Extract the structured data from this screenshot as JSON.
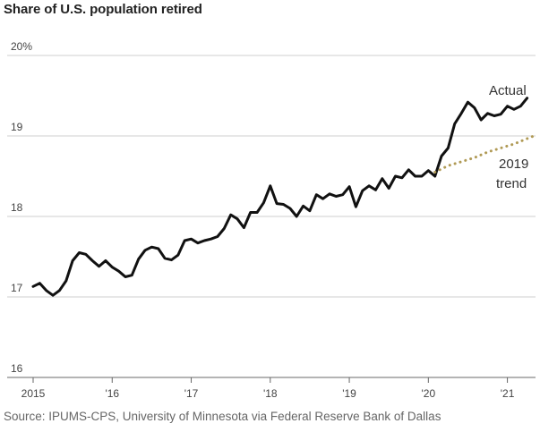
{
  "chart_data": {
    "type": "line",
    "title": "Share of U.S. population retired",
    "source": "Source: IPUMS-CPS, University of Minnesota via Federal Reserve Bank of Dallas",
    "ylim": [
      16,
      20
    ],
    "yticks": [
      {
        "value": 20,
        "label": "20%"
      },
      {
        "value": 19,
        "label": "19"
      },
      {
        "value": 18,
        "label": "18"
      },
      {
        "value": 17,
        "label": "17"
      },
      {
        "value": 16,
        "label": "16"
      }
    ],
    "xlim": [
      "2015-01",
      "2021-05"
    ],
    "xticks": [
      {
        "date": "2015-01",
        "label": "2015"
      },
      {
        "date": "2016-01",
        "label": "'16"
      },
      {
        "date": "2017-01",
        "label": "'17"
      },
      {
        "date": "2018-01",
        "label": "'18"
      },
      {
        "date": "2019-01",
        "label": "'19"
      },
      {
        "date": "2020-01",
        "label": "'20"
      },
      {
        "date": "2021-01",
        "label": "'21"
      }
    ],
    "grid": true,
    "series": [
      {
        "name": "Actual",
        "color": "#111111",
        "style": "solid",
        "points": [
          [
            "2015-01",
            17.13
          ],
          [
            "2015-02",
            17.17
          ],
          [
            "2015-03",
            17.08
          ],
          [
            "2015-04",
            17.02
          ],
          [
            "2015-05",
            17.08
          ],
          [
            "2015-06",
            17.2
          ],
          [
            "2015-07",
            17.45
          ],
          [
            "2015-08",
            17.55
          ],
          [
            "2015-09",
            17.53
          ],
          [
            "2015-10",
            17.45
          ],
          [
            "2015-11",
            17.38
          ],
          [
            "2015-12",
            17.45
          ],
          [
            "2016-01",
            17.37
          ],
          [
            "2016-02",
            17.32
          ],
          [
            "2016-03",
            17.25
          ],
          [
            "2016-04",
            17.27
          ],
          [
            "2016-05",
            17.47
          ],
          [
            "2016-06",
            17.58
          ],
          [
            "2016-07",
            17.62
          ],
          [
            "2016-08",
            17.6
          ],
          [
            "2016-09",
            17.48
          ],
          [
            "2016-10",
            17.46
          ],
          [
            "2016-11",
            17.52
          ],
          [
            "2016-12",
            17.7
          ],
          [
            "2017-01",
            17.72
          ],
          [
            "2017-02",
            17.67
          ],
          [
            "2017-03",
            17.7
          ],
          [
            "2017-04",
            17.72
          ],
          [
            "2017-05",
            17.75
          ],
          [
            "2017-06",
            17.85
          ],
          [
            "2017-07",
            18.02
          ],
          [
            "2017-08",
            17.97
          ],
          [
            "2017-09",
            17.86
          ],
          [
            "2017-10",
            18.05
          ],
          [
            "2017-11",
            18.05
          ],
          [
            "2017-12",
            18.17
          ],
          [
            "2018-01",
            18.38
          ],
          [
            "2018-02",
            18.16
          ],
          [
            "2018-03",
            18.15
          ],
          [
            "2018-04",
            18.1
          ],
          [
            "2018-05",
            18.0
          ],
          [
            "2018-06",
            18.13
          ],
          [
            "2018-07",
            18.07
          ],
          [
            "2018-08",
            18.27
          ],
          [
            "2018-09",
            18.22
          ],
          [
            "2018-10",
            18.28
          ],
          [
            "2018-11",
            18.25
          ],
          [
            "2018-12",
            18.27
          ],
          [
            "2019-01",
            18.37
          ],
          [
            "2019-02",
            18.12
          ],
          [
            "2019-03",
            18.32
          ],
          [
            "2019-04",
            18.38
          ],
          [
            "2019-05",
            18.33
          ],
          [
            "2019-06",
            18.47
          ],
          [
            "2019-07",
            18.35
          ],
          [
            "2019-08",
            18.5
          ],
          [
            "2019-09",
            18.48
          ],
          [
            "2019-10",
            18.58
          ],
          [
            "2019-11",
            18.5
          ],
          [
            "2019-12",
            18.5
          ],
          [
            "2020-01",
            18.57
          ],
          [
            "2020-02",
            18.5
          ],
          [
            "2020-03",
            18.75
          ],
          [
            "2020-04",
            18.85
          ],
          [
            "2020-05",
            19.15
          ],
          [
            "2020-06",
            19.28
          ],
          [
            "2020-07",
            19.42
          ],
          [
            "2020-08",
            19.35
          ],
          [
            "2020-09",
            19.2
          ],
          [
            "2020-10",
            19.28
          ],
          [
            "2020-11",
            19.25
          ],
          [
            "2020-12",
            19.27
          ],
          [
            "2021-01",
            19.37
          ],
          [
            "2021-02",
            19.33
          ],
          [
            "2021-03",
            19.37
          ],
          [
            "2021-04",
            19.47
          ]
        ]
      },
      {
        "name": "2019 trend",
        "color": "#b09a55",
        "style": "dotted",
        "points": [
          [
            "2020-02",
            18.55
          ],
          [
            "2020-04",
            18.63
          ],
          [
            "2020-06",
            18.68
          ],
          [
            "2020-08",
            18.73
          ],
          [
            "2020-10",
            18.8
          ],
          [
            "2020-12",
            18.85
          ],
          [
            "2021-02",
            18.9
          ],
          [
            "2021-05",
            19.0
          ]
        ]
      }
    ],
    "annotations": {
      "actual": "Actual",
      "trend_line1": "2019",
      "trend_line2": "trend"
    }
  }
}
